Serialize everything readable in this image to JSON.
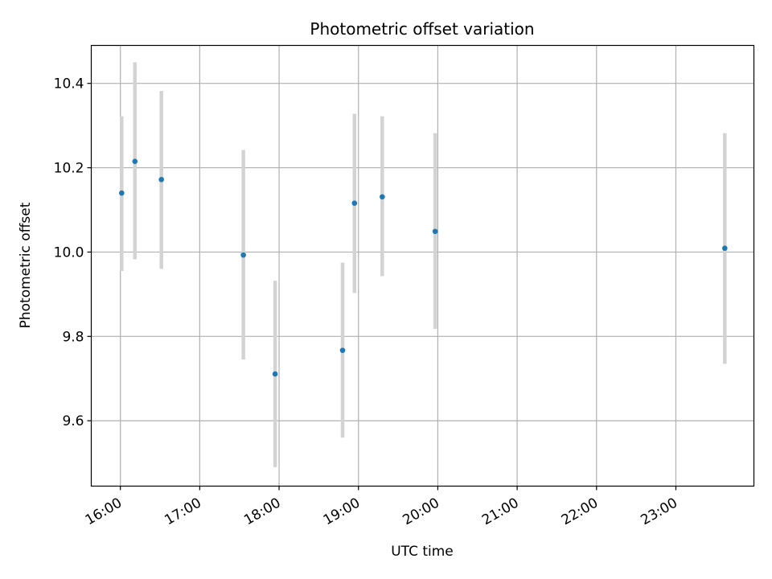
{
  "chart_data": {
    "type": "scatter",
    "title": "Photometric offset variation",
    "xlabel": "UTC time",
    "ylabel": "Photometric offset",
    "x_tick_labels": [
      "16:00",
      "17:00",
      "18:00",
      "19:00",
      "20:00",
      "21:00",
      "22:00",
      "23:00"
    ],
    "y_tick_labels": [
      "9.6",
      "9.8",
      "10.0",
      "10.2",
      "10.4"
    ],
    "xlim": [
      "15:38",
      "23:59"
    ],
    "ylim": [
      9.445,
      10.49
    ],
    "grid": true,
    "marker_color": "#1f77b4",
    "errorbar_color": "#d3d3d3",
    "points": [
      {
        "time": "16:01",
        "y": 10.14,
        "err_low": 9.955,
        "err_high": 10.322
      },
      {
        "time": "16:11",
        "y": 10.215,
        "err_low": 9.983,
        "err_high": 10.45
      },
      {
        "time": "16:31",
        "y": 10.172,
        "err_low": 9.96,
        "err_high": 10.382
      },
      {
        "time": "17:33",
        "y": 9.993,
        "err_low": 9.745,
        "err_high": 10.242
      },
      {
        "time": "17:57",
        "y": 9.711,
        "err_low": 9.49,
        "err_high": 9.932
      },
      {
        "time": "18:48",
        "y": 9.767,
        "err_low": 9.56,
        "err_high": 9.975
      },
      {
        "time": "18:57",
        "y": 10.116,
        "err_low": 9.903,
        "err_high": 10.328
      },
      {
        "time": "19:18",
        "y": 10.131,
        "err_low": 9.943,
        "err_high": 10.322
      },
      {
        "time": "19:58",
        "y": 10.049,
        "err_low": 9.818,
        "err_high": 10.282
      },
      {
        "time": "23:37",
        "y": 10.009,
        "err_low": 9.735,
        "err_high": 10.282
      }
    ]
  }
}
